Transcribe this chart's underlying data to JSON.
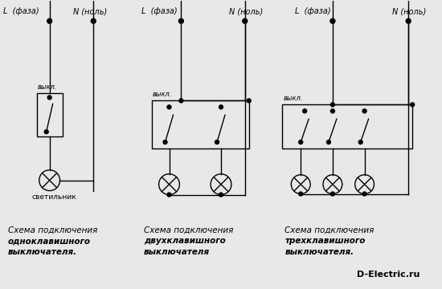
{
  "bg_color": "#e8e8e8",
  "line_color": "#000000",
  "watermark": "D-Electric.ru",
  "d1_label_L": "L  (фаза)",
  "d1_label_N": "N (ноль)",
  "d1_switch_label": "выкл.",
  "d1_lamp_label": "светильник",
  "d1_cap1": "Схема подключения",
  "d1_cap2": "одноклавишного",
  "d1_cap3": "выключателя.",
  "d2_label_L": "L  (фаза)",
  "d2_label_N": "N (ноль)",
  "d2_switch_label": "выкл.",
  "d2_cap1": "Схема подключения",
  "d2_cap2": "двухклавишного",
  "d2_cap3": "выключателя",
  "d3_label_L": "L  (фаза)",
  "d3_label_N": "N (ноль)",
  "d3_switch_label": "выкл.",
  "d3_cap1": "Схема подключения",
  "d3_cap2": "трехклавишного",
  "d3_cap3": "выключателя."
}
